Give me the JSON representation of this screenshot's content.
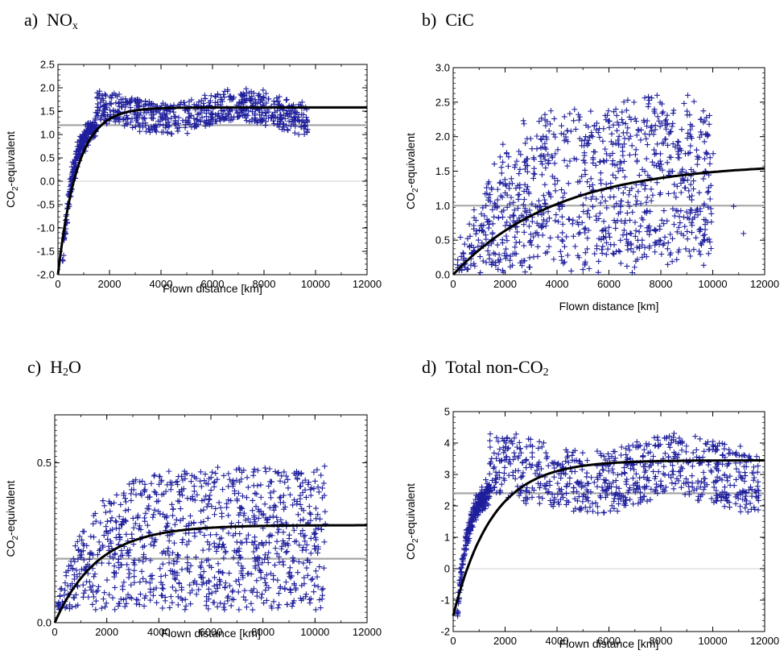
{
  "colors": {
    "points": "#1f1f9c",
    "fit_line": "#000000",
    "reference_line": "#a6a6a6",
    "zero_line": "#d0d0d0"
  },
  "chart_data": [
    {
      "type": "scatter",
      "panel": "a)",
      "title_main": "NO",
      "title_sub": "x",
      "xlabel": "Flown distance [km]",
      "ylabel_main": "CO",
      "ylabel_sub": "2",
      "ylabel_rest": "-equivalent",
      "xlim": [
        0,
        12000
      ],
      "ylim": [
        -2.0,
        2.5
      ],
      "xticks": [
        0,
        2000,
        4000,
        6000,
        8000,
        10000,
        12000
      ],
      "yticks": [
        -2.0,
        -1.5,
        -1.0,
        -0.5,
        0.0,
        0.5,
        1.0,
        1.5,
        2.0,
        2.5
      ],
      "ytick_decimals": 1,
      "reference_value": 1.2,
      "zero_line": true,
      "fit_curve": {
        "model": "a+(b-a)*(1-exp(-x/k))",
        "a": -2.0,
        "b": 1.58,
        "k": 750
      },
      "point_cloud": {
        "count": 900,
        "x_range": [
          150,
          10000
        ],
        "trend": "rises steeply to ~1.2 by 1500 km, then 1.2-2.2 band",
        "y_min": -1.7,
        "y_max": 2.2
      }
    },
    {
      "type": "scatter",
      "panel": "b)",
      "title_main": "CiC",
      "title_sub": "",
      "xlabel": "Flown distance [km]",
      "ylabel_main": "CO",
      "ylabel_sub": "2",
      "ylabel_rest": "-equivalent",
      "xlim": [
        0,
        12000
      ],
      "ylim": [
        0.0,
        3.0
      ],
      "xticks": [
        0,
        2000,
        4000,
        6000,
        8000,
        10000,
        12000
      ],
      "yticks": [
        0.0,
        0.5,
        1.0,
        1.5,
        2.0,
        2.5,
        3.0
      ],
      "ytick_decimals": 1,
      "reference_value": 1.0,
      "zero_line": false,
      "fit_curve": {
        "model": "b*(1-exp(-x/k))",
        "a": 0,
        "b": 1.62,
        "k": 4000
      },
      "point_cloud": {
        "count": 1000,
        "x_range": [
          150,
          12000
        ],
        "trend": "wide scatter 0-2.6",
        "y_min": 0.0,
        "y_max": 2.6
      }
    },
    {
      "type": "scatter",
      "panel": "c)",
      "title_main": "H",
      "title_sub": "2",
      "title_rest": "O",
      "xlabel": "Flown distance [km]",
      "ylabel_main": "CO",
      "ylabel_sub": "2",
      "ylabel_rest": "-equivalent",
      "xlim": [
        0,
        12000
      ],
      "ylim": [
        0.0,
        0.65
      ],
      "xticks": [
        0,
        2000,
        4000,
        6000,
        8000,
        10000,
        12000
      ],
      "yticks": [
        0.0,
        0.5
      ],
      "ytick_decimals": 1,
      "reference_value": 0.2,
      "zero_line": false,
      "fit_curve": {
        "model": "b*(1-exp(-x/k))",
        "a": 0,
        "b": 0.305,
        "k": 1650
      },
      "point_cloud": {
        "count": 1000,
        "x_range": [
          100,
          12000
        ],
        "trend": "scatter 0-0.45",
        "y_min": 0.0,
        "y_max": 0.5
      }
    },
    {
      "type": "scatter",
      "panel": "d)",
      "title_main": "Total non-CO",
      "title_sub": "2",
      "xlabel": "Flown distance [km]",
      "ylabel_main": "CO",
      "ylabel_sub": "2",
      "ylabel_rest": "-equivalent",
      "xlim": [
        0,
        12000
      ],
      "ylim": [
        -2,
        5
      ],
      "xticks": [
        0,
        2000,
        4000,
        6000,
        8000,
        10000,
        12000
      ],
      "yticks": [
        -2,
        -1,
        0,
        1,
        2,
        3,
        4,
        5
      ],
      "ytick_decimals": 0,
      "reference_value": 2.4,
      "zero_line": true,
      "fit_curve": {
        "model": "a+(b-a)*(1-exp(-x/k))",
        "a": -1.5,
        "b": 3.45,
        "k": 1500
      },
      "point_cloud": {
        "count": 1000,
        "x_range": [
          150,
          11900
        ],
        "trend": "rises to ~2 by 1000 km, 2-4.5 band",
        "y_min": -1.7,
        "y_max": 4.6
      }
    }
  ]
}
